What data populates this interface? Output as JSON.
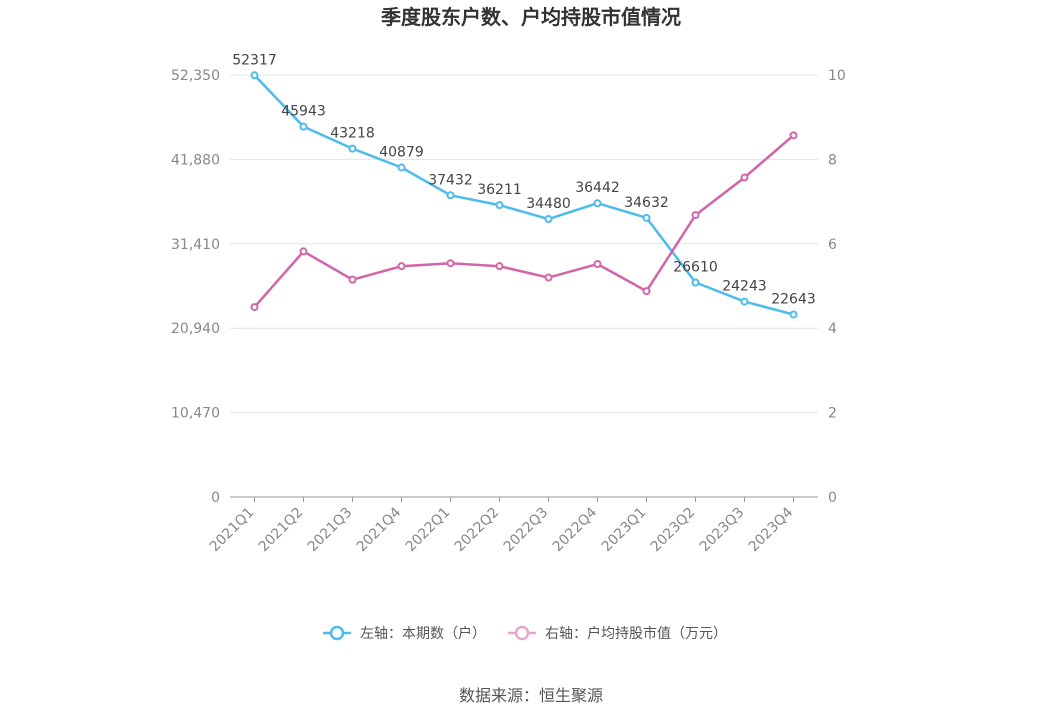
{
  "chart_data": {
    "type": "line",
    "title": "季度股东户数、户均持股市值情况",
    "categories": [
      "2021Q1",
      "2021Q2",
      "2021Q3",
      "2021Q4",
      "2022Q1",
      "2022Q2",
      "2022Q3",
      "2022Q4",
      "2023Q1",
      "2023Q2",
      "2023Q3",
      "2023Q4"
    ],
    "left_axis": {
      "min": 0,
      "max": 52350,
      "ticks": [
        "0",
        "10,470",
        "20,940",
        "31,410",
        "41,880",
        "52,350"
      ]
    },
    "right_axis": {
      "min": 0,
      "max": 10,
      "ticks": [
        "0",
        "2",
        "4",
        "6",
        "8",
        "10"
      ]
    },
    "series": [
      {
        "name": "左轴：本期数（户）",
        "axis": "left",
        "color": "#4dbbeb",
        "values": [
          52317,
          45943,
          43218,
          40879,
          37432,
          36211,
          34480,
          36442,
          34632,
          26610,
          24243,
          22643
        ],
        "labels": [
          "52317",
          "45943",
          "43218",
          "40879",
          "37432",
          "36211",
          "34480",
          "36442",
          "34632",
          "26610",
          "24243",
          "22643"
        ]
      },
      {
        "name": "右轴：户均持股市值（万元）",
        "axis": "right",
        "color": "#d264a9",
        "legend_color": "#e8a6cf",
        "values": [
          4.5,
          5.82,
          5.15,
          5.47,
          5.54,
          5.47,
          5.2,
          5.52,
          4.88,
          6.68,
          7.57,
          8.57
        ]
      }
    ],
    "grid": true,
    "legend_position": "bottom"
  },
  "source": "数据来源：恒生聚源"
}
